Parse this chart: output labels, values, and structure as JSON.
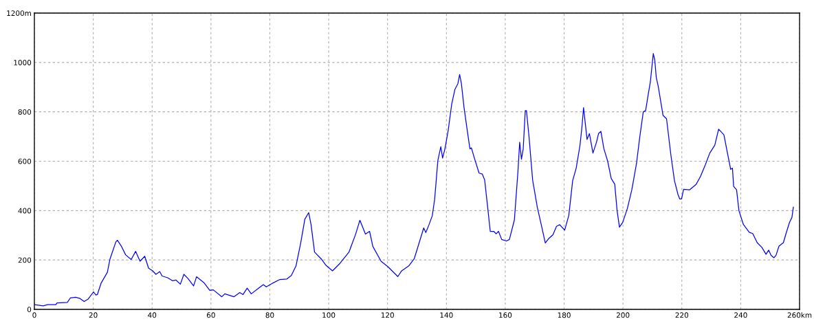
{
  "chart_data": {
    "type": "line",
    "xlim": [
      0,
      260
    ],
    "ylim": [
      0,
      1200
    ],
    "xticks": [
      0,
      20,
      40,
      60,
      80,
      100,
      120,
      140,
      160,
      180,
      200,
      220,
      240,
      {
        "value": 260,
        "label": "260km"
      }
    ],
    "yticks": [
      0,
      200,
      400,
      600,
      800,
      1000,
      {
        "value": 1200,
        "label": "1200m"
      }
    ],
    "grid": true,
    "marker": "none",
    "line_style": "solid",
    "series": [
      {
        "color": "#0000ff",
        "x": [
          0,
          3,
          4.5,
          7.3,
          7.7,
          11.2,
          12.2,
          14,
          15.5,
          16.9,
          18.3,
          20.1,
          20.9,
          21.4,
          22.7,
          24.8,
          25.7,
          27.7,
          28.2,
          29.6,
          31,
          32.9,
          34.4,
          35.9,
          37.5,
          38.8,
          40.2,
          41.3,
          42.6,
          43.4,
          45.3,
          46.9,
          48.1,
          49.6,
          50.8,
          52.2,
          54.1,
          55.1,
          57.7,
          59.6,
          60.8,
          63.7,
          64.7,
          67.8,
          69.8,
          70.9,
          72.3,
          73.7,
          76,
          77.8,
          78.8,
          81.1,
          83.4,
          85.8,
          87.3,
          88.9,
          90.5,
          91.9,
          93.2,
          94,
          95.2,
          97.5,
          99.1,
          101.3,
          103.8,
          106.9,
          109.2,
          110.6,
          112.5,
          113.9,
          115,
          117.8,
          120.2,
          123.5,
          124.8,
          127.2,
          129.1,
          132.3,
          133,
          134,
          135.2,
          136,
          137.1,
          138.1,
          138.7,
          139.5,
          140.6,
          141.8,
          142.9,
          143.9,
          144.5,
          145.1,
          146,
          147.2,
          148,
          148.5,
          149.5,
          151.1,
          152.2,
          153,
          153.9,
          154.9,
          156.1,
          156.9,
          157.7,
          158.8,
          160.4,
          161.4,
          163.1,
          164.3,
          164.9,
          165.5,
          166.1,
          166.8,
          167.2,
          168.1,
          169.3,
          170.9,
          172.4,
          173.6,
          174.7,
          176.2,
          177.4,
          178.5,
          180.2,
          181.6,
          182.9,
          184.1,
          185.4,
          186.1,
          186.6,
          187.8,
          188.6,
          189.8,
          191,
          191.7,
          192.5,
          193.5,
          194.8,
          196,
          197.2,
          198,
          198.8,
          199.9,
          201.5,
          203,
          204.6,
          205.7,
          206.9,
          207.7,
          208.5,
          209.3,
          210.3,
          210.8,
          211.3,
          212,
          213.6,
          214.8,
          216.3,
          217.5,
          218.7,
          219.3,
          219.9,
          220.6,
          222.6,
          224.9,
          226.4,
          228,
          229.5,
          231.2,
          232.5,
          234.3,
          235.5,
          236.6,
          237.2,
          237.6,
          238.6,
          239.4,
          240.9,
          242.9,
          244.1,
          245.6,
          247.2,
          248.6,
          249.5,
          250.3,
          251.3,
          252,
          253,
          254.5,
          255.4,
          256.6,
          257.4,
          257.9
        ],
        "values": [
          19,
          14,
          19,
          19,
          26,
          28,
          46,
          49,
          44,
          32,
          42,
          71,
          58,
          60,
          107,
          150,
          204,
          274,
          280,
          255,
          221,
          202,
          235,
          195,
          215,
          167,
          156,
          142,
          153,
          135,
          128,
          116,
          119,
          102,
          142,
          125,
          95,
          132,
          107,
          77,
          79,
          51,
          63,
          51,
          68,
          60,
          86,
          63,
          84,
          100,
          91,
          107,
          121,
          123,
          137,
          176,
          269,
          365,
          392,
          344,
          232,
          204,
          178,
          156,
          186,
          232,
          306,
          361,
          305,
          316,
          255,
          195,
          172,
          133,
          156,
          176,
          206,
          330,
          311,
          340,
          379,
          445,
          603,
          659,
          613,
          650,
          724,
          831,
          891,
          914,
          951,
          914,
          817,
          715,
          650,
          654,
          613,
          552,
          548,
          524,
          427,
          316,
          316,
          306,
          316,
          283,
          277,
          283,
          362,
          557,
          677,
          608,
          650,
          805,
          805,
          696,
          524,
          413,
          334,
          269,
          286,
          302,
          336,
          343,
          321,
          381,
          521,
          572,
          665,
          744,
          817,
          688,
          712,
          633,
          677,
          712,
          721,
          651,
          600,
          530,
          507,
          400,
          333,
          352,
          409,
          484,
          591,
          698,
          800,
          805,
          865,
          921,
          1036,
          1010,
          940,
          902,
          786,
          772,
          623,
          521,
          465,
          447,
          447,
          486,
          484,
          507,
          540,
          586,
          633,
          665,
          730,
          707,
          633,
          567,
          572,
          498,
          484,
          400,
          344,
          312,
          307,
          270,
          251,
          223,
          240,
          219,
          209,
          219,
          256,
          270,
          307,
          353,
          372,
          414
        ]
      }
    ]
  }
}
